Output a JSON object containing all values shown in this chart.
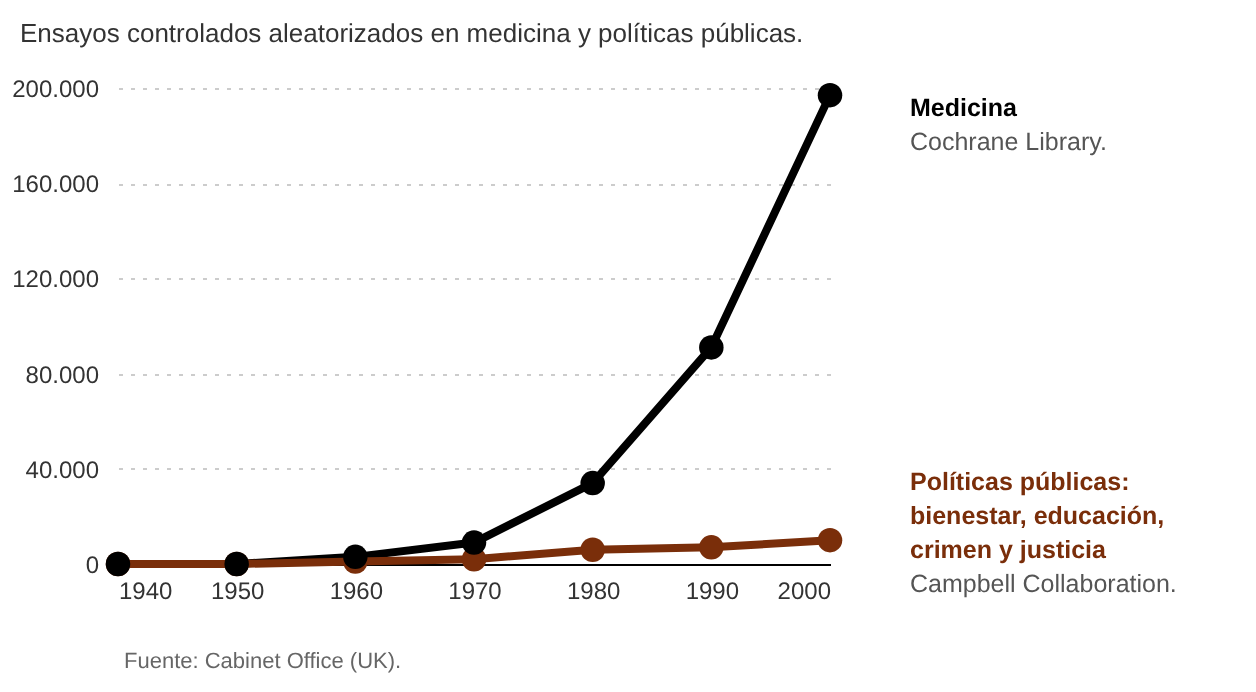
{
  "chart_data": {
    "type": "line",
    "title": "Ensayos controlados aleatorizados en medicina y políticas públicas.",
    "x": [
      1940,
      1950,
      1960,
      1970,
      1980,
      1990,
      2000
    ],
    "series": [
      {
        "name": "Medicina",
        "color": "#000000",
        "values": [
          0,
          0,
          3000,
          9000,
          34000,
          91000,
          197000
        ]
      },
      {
        "name": "Políticas públicas: bienestar, educación, crimen y justicia",
        "color": "#7a2e0a",
        "values": [
          0,
          0,
          1000,
          2000,
          6000,
          7000,
          10000
        ]
      }
    ],
    "xlim": [
      1940,
      2000
    ],
    "xticks": [
      1940,
      1950,
      1960,
      1970,
      1980,
      1990,
      2000
    ],
    "ylim": [
      0,
      200000
    ],
    "yticks": [
      {
        "value": 0,
        "label": "0"
      },
      {
        "value": 40000,
        "label": "40.000"
      },
      {
        "value": 80000,
        "label": "80.000"
      },
      {
        "value": 120000,
        "label": "120.000"
      },
      {
        "value": 160000,
        "label": "160.000"
      },
      {
        "value": 200000,
        "label": "200.000"
      }
    ],
    "grid": "y",
    "marker": "circle",
    "line_style": "solid",
    "legend": "right",
    "annotations": [
      "Cochrane Library.",
      "Campbell Collaboration.",
      "Fuente: Cabinet Office (UK)."
    ]
  }
}
